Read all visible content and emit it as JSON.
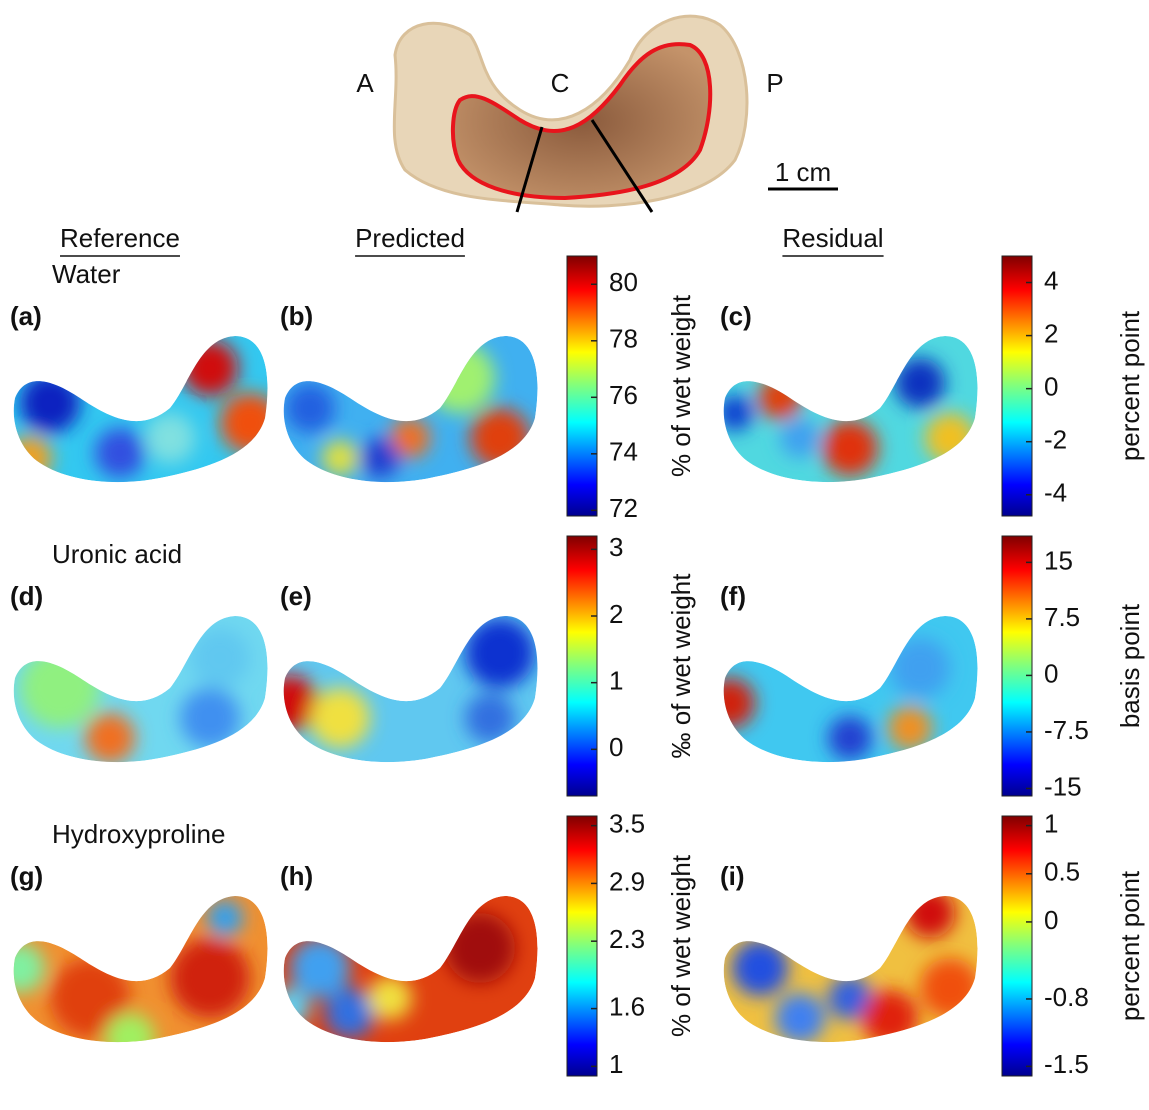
{
  "labels": {
    "anterior": "A",
    "central": "C",
    "posterior": "P",
    "scale": "1 cm"
  },
  "columns": [
    "Reference",
    "Predicted",
    "Residual"
  ],
  "rows": [
    {
      "name": "Water",
      "panels": [
        "(a)",
        "(b)",
        "(c)"
      ],
      "colorbars": [
        {
          "label": "% of wet weight",
          "lim": [
            71.8,
            81
          ],
          "ticks": [
            80,
            78,
            76,
            74,
            72
          ]
        },
        {
          "label": "percent point",
          "lim": [
            -4.8,
            5
          ],
          "ticks": [
            4,
            2,
            0,
            -2,
            -4
          ]
        }
      ]
    },
    {
      "name": "Uronic acid",
      "panels": [
        "(d)",
        "(e)",
        "(f)"
      ],
      "colorbars": [
        {
          "label": "‰ of wet weight",
          "lim": [
            -0.7,
            3.2
          ],
          "ticks": [
            3,
            2,
            1,
            0
          ]
        },
        {
          "label": "basis point",
          "lim": [
            -16,
            18.5
          ],
          "ticks": [
            15,
            7.5,
            0,
            -7.5,
            -15
          ]
        }
      ]
    },
    {
      "name": "Hydroxyproline",
      "panels": [
        "(g)",
        "(h)",
        "(i)"
      ],
      "colorbars": [
        {
          "label": "% of wet weight",
          "lim": [
            0.9,
            3.6
          ],
          "ticks": [
            3.5,
            2.9,
            2.3,
            1.6,
            1
          ]
        },
        {
          "label": "percent point",
          "lim": [
            -1.6,
            1.1
          ],
          "ticks": [
            1,
            0.5,
            0,
            -0.8,
            -1.5
          ]
        }
      ]
    }
  ]
}
